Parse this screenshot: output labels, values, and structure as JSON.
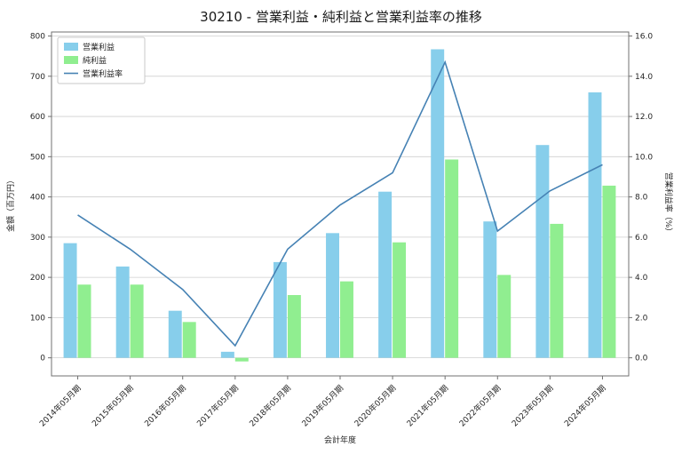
{
  "chart_data": {
    "type": "bar+line",
    "title": "30210 - 営業利益・純利益と営業利益率の推移",
    "xlabel": "会計年度",
    "categories": [
      "2014年05月期",
      "2015年05月期",
      "2016年05月期",
      "2017年05月期",
      "2018年05月期",
      "2019年05月期",
      "2020年05月期",
      "2021年05月期",
      "2022年05月期",
      "2023年05月期",
      "2024年05月期"
    ],
    "series": [
      {
        "id": "operating-profit",
        "name": "営業利益",
        "type": "bar",
        "axis": "left",
        "color": "#87ceeb",
        "values": [
          285,
          227,
          117,
          15,
          238,
          310,
          413,
          767,
          339,
          529,
          660
        ]
      },
      {
        "id": "net-profit",
        "name": "純利益",
        "type": "bar",
        "axis": "left",
        "color": "#90ee90",
        "values": [
          182,
          182,
          89,
          -9,
          156,
          190,
          287,
          493,
          206,
          333,
          428
        ]
      },
      {
        "id": "operating-margin",
        "name": "営業利益率",
        "type": "line",
        "axis": "right",
        "color": "#4682b4",
        "values": [
          7.1,
          5.4,
          3.4,
          0.6,
          5.4,
          7.6,
          9.2,
          14.7,
          6.3,
          8.3,
          9.6
        ]
      }
    ],
    "left_axis": {
      "label": "金額（百万円）",
      "tick_values": [
        0,
        100,
        200,
        300,
        400,
        500,
        600,
        700,
        800
      ],
      "tick_labels": [
        "0",
        "100",
        "200",
        "300",
        "400",
        "500",
        "600",
        "700",
        "800"
      ],
      "range": [
        -45,
        810
      ]
    },
    "right_axis": {
      "label": "営業利益率（%）",
      "tick_values": [
        0,
        2,
        4,
        6,
        8,
        10,
        12,
        14,
        16
      ],
      "tick_labels": [
        "0.0",
        "2.0",
        "4.0",
        "6.0",
        "8.0",
        "10.0",
        "12.0",
        "14.0",
        "16.0"
      ],
      "range": [
        -0.9,
        16.2
      ]
    },
    "legend": {
      "position": "upper-left"
    },
    "grid": true
  },
  "style": {
    "grid_color": "#cfcfcf",
    "spine_color": "#707070",
    "text_color": "#262626",
    "background": "#ffffff"
  }
}
